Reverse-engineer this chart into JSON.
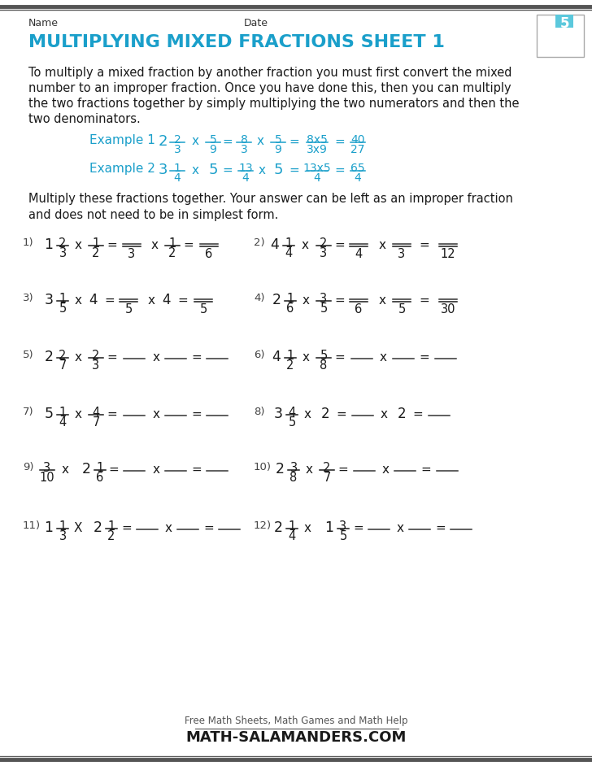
{
  "title": "MULTIPLYING MIXED FRACTIONS SHEET 1",
  "title_color": "#1a9fca",
  "bg_color": "#f5f5f5",
  "text_color": "#1a1a1a",
  "blue_color": "#1a9fca",
  "dark_color": "#333333",
  "name_label": "Name",
  "date_label": "Date",
  "intro_line1": "To multiply a mixed fraction by another fraction you must first convert the mixed",
  "intro_line2": "number to an improper fraction. Once you have done this, then you can multiply",
  "intro_line3": "the two fractions together by simply multiplying the two numerators and then the",
  "intro_line4": "two denominators.",
  "multiply_line1": "Multiply these fractions together. Your answer can be left as an improper fraction",
  "multiply_line2": "and does not need to be in simplest form.",
  "footer_text": "Free Math Sheets, Math Games and Math Help",
  "footer_site": "MATH-SALAMANDERS.COM"
}
